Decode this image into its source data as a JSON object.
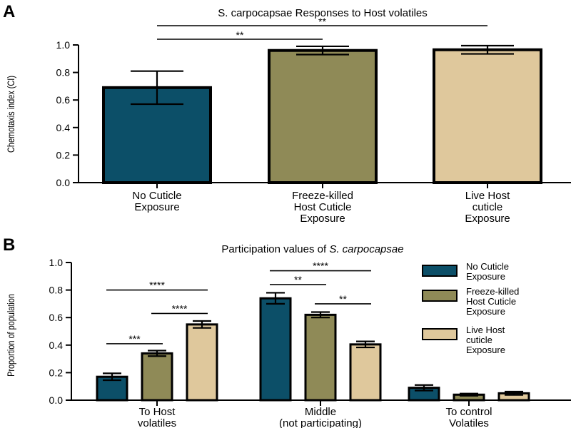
{
  "panels": {
    "a": {
      "letter": "A"
    },
    "b": {
      "letter": "B"
    }
  },
  "chart_data": [
    {
      "type": "bar",
      "title": "S. carpocapsae Responses to Host volatiles",
      "ylabel": "Chemotaxis index (CI)",
      "xlabel": "",
      "ylim": [
        0,
        1.0
      ],
      "yticks": [
        "0.0",
        "0.2",
        "0.4",
        "0.6",
        "0.8",
        "1.0"
      ],
      "grid": false,
      "categories": [
        [
          "No Cuticle",
          "Exposure"
        ],
        [
          "Freeze-killed",
          "Host Cuticle",
          "Exposure"
        ],
        [
          "Live Host",
          "cuticle",
          "Exposure"
        ]
      ],
      "values": [
        0.69,
        0.96,
        0.965
      ],
      "errors": [
        0.12,
        0.03,
        0.03
      ],
      "colors": [
        "#0c4f68",
        "#8f8a57",
        "#dfc89c"
      ],
      "significance": [
        {
          "from": 0,
          "to": 1,
          "label": "**"
        },
        {
          "from": 0,
          "to": 2,
          "label": "**"
        }
      ]
    },
    {
      "type": "bar",
      "title_plain": "Participation values of ",
      "title_italic": "S. carpocapsae",
      "ylabel": "Proportion of population",
      "xlabel": "",
      "ylim": [
        0,
        1.0
      ],
      "yticks": [
        "0.0",
        "0.2",
        "0.4",
        "0.6",
        "0.8",
        "1.0"
      ],
      "grid": false,
      "legend_position": "right",
      "categories": [
        [
          "To Host",
          "volatiles"
        ],
        [
          "Middle",
          "(not participating)"
        ],
        [
          "To control",
          "Volatiles"
        ]
      ],
      "series": [
        {
          "name": [
            "No Cuticle",
            "Exposure"
          ],
          "color": "#0c4f68",
          "values": [
            0.17,
            0.74,
            0.09
          ],
          "errors": [
            0.025,
            0.04,
            0.02
          ]
        },
        {
          "name": [
            "Freeze-killed",
            "Host Cuticle",
            "Exposure"
          ],
          "color": "#8f8a57",
          "values": [
            0.34,
            0.62,
            0.04
          ],
          "errors": [
            0.02,
            0.02,
            0.008
          ]
        },
        {
          "name": [
            "Live Host",
            "cuticle",
            "Exposure"
          ],
          "color": "#dfc89c",
          "values": [
            0.55,
            0.405,
            0.05
          ],
          "errors": [
            0.025,
            0.022,
            0.012
          ]
        }
      ],
      "significance": [
        {
          "group": 0,
          "from": 0,
          "to": 2,
          "label": "****",
          "level": 0.8
        },
        {
          "group": 0,
          "from": 1,
          "to": 2,
          "label": "****",
          "level": 0.63
        },
        {
          "group": 0,
          "from": 0,
          "to": 1,
          "label": "***",
          "level": 0.41
        },
        {
          "group": 1,
          "from": 0,
          "to": 2,
          "label": "****",
          "level": 0.94
        },
        {
          "group": 1,
          "from": 0,
          "to": 1,
          "label": "**",
          "level": 0.84
        },
        {
          "group": 1,
          "from": 1,
          "to": 2,
          "label": "**",
          "level": 0.7
        }
      ]
    }
  ]
}
